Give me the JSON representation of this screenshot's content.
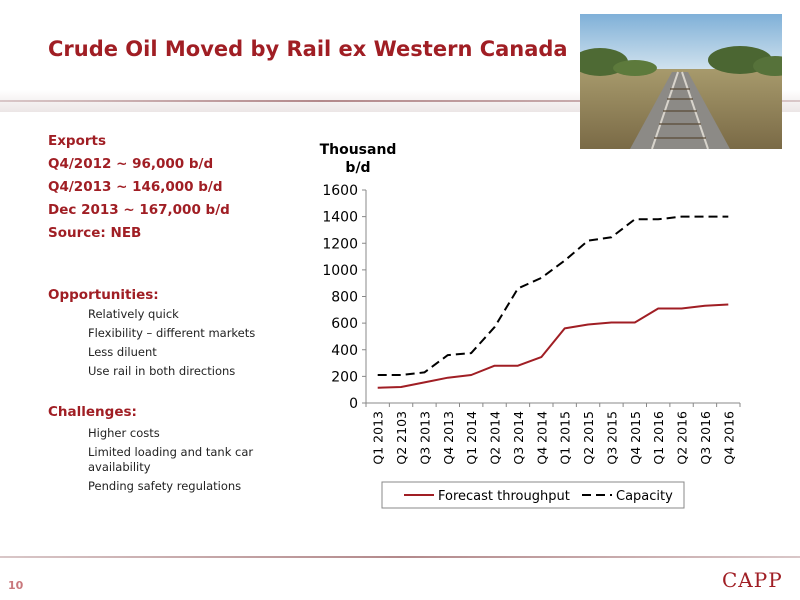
{
  "title": "Crude Oil Moved by Rail ex Western Canada",
  "photo_icon": "railway-track-photo",
  "colors": {
    "accent": "#a01e24",
    "forecast": "#a01e24",
    "capacity": "#000000"
  },
  "exports": {
    "heading": "Exports",
    "lines": [
      "Q4/2012 ~ 96,000 b/d",
      "Q4/2013 ~ 146,000 b/d",
      "Dec 2013 ~ 167,000 b/d",
      "Source: NEB"
    ]
  },
  "opportunities": {
    "heading": "Opportunities:",
    "items": [
      "Relatively quick",
      "Flexibility – different markets",
      "Less diluent",
      "Use rail in both directions"
    ]
  },
  "challenges": {
    "heading": "Challenges:",
    "items": [
      "Higher costs",
      "Limited loading and tank car availability",
      "Pending safety regulations"
    ]
  },
  "footer": {
    "page_number": "10",
    "logo_text": "CAPP"
  },
  "chart_data": {
    "type": "line",
    "ylabel": "Thousand b/d",
    "xlabel": "",
    "ylim": [
      0,
      1600
    ],
    "yticks": [
      0,
      200,
      400,
      600,
      800,
      1000,
      1200,
      1400,
      1600
    ],
    "categories": [
      "Q1 2013",
      "Q2 2103",
      "Q3 2013",
      "Q4 2013",
      "Q1 2014",
      "Q2 2014",
      "Q3 2014",
      "Q4 2014",
      "Q1 2015",
      "Q2 2015",
      "Q3 2015",
      "Q4 2015",
      "Q1 2016",
      "Q2 2016",
      "Q3 2016",
      "Q4 2016"
    ],
    "series": [
      {
        "name": "Forecast throughput",
        "style": "solid",
        "color": "#a01e24",
        "values": [
          115,
          120,
          155,
          190,
          210,
          280,
          280,
          345,
          560,
          590,
          605,
          605,
          710,
          710,
          730,
          740
        ]
      },
      {
        "name": "Capacity",
        "style": "dashed",
        "color": "#000000",
        "values": [
          210,
          210,
          230,
          360,
          375,
          570,
          860,
          940,
          1070,
          1220,
          1245,
          1380,
          1380,
          1400,
          1400,
          1400
        ]
      }
    ],
    "grid": false,
    "legend_position": "bottom"
  }
}
